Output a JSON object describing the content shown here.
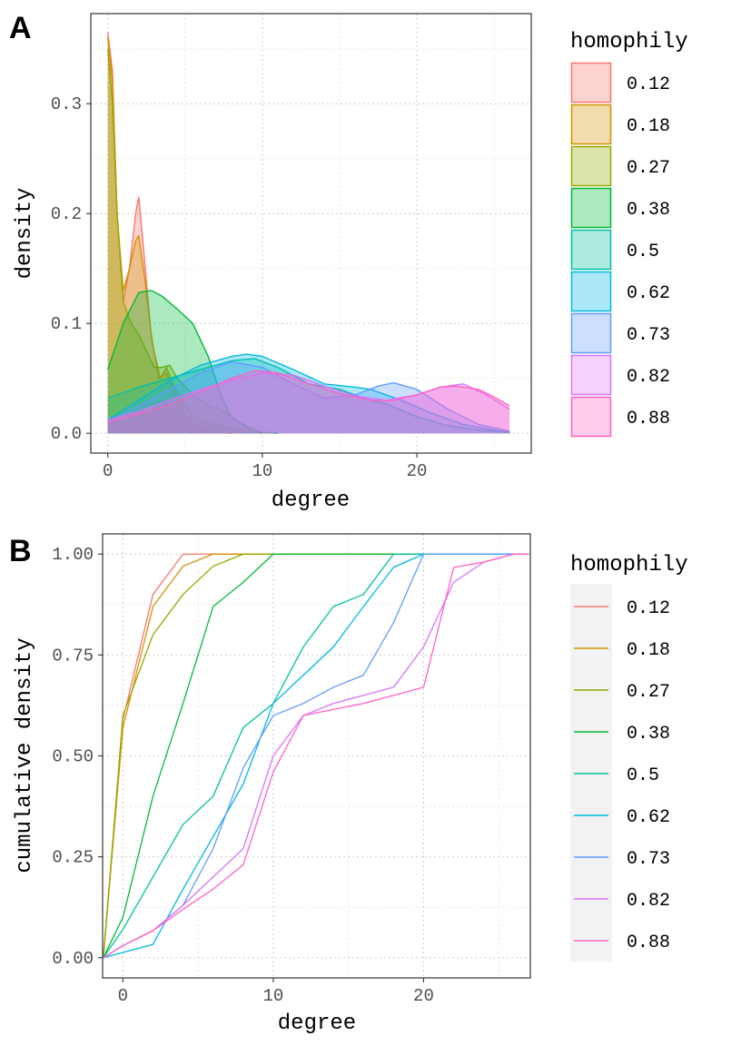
{
  "figure": {
    "panel_a_tag": "A",
    "panel_b_tag": "B",
    "legend_title": "homophily"
  },
  "colors": {
    "0.12": "#F8766D",
    "0.18": "#D39200",
    "0.27": "#93AA00",
    "0.38": "#00BA38",
    "0.5": "#00C19F",
    "0.62": "#00B9E3",
    "0.73": "#619CFF",
    "0.82": "#DB72FB",
    "0.88": "#FF61C3"
  },
  "chart_data": [
    {
      "type": "area",
      "panel": "A",
      "title": "",
      "xlabel": "degree",
      "ylabel": "density",
      "xlim": [
        -1.1,
        27.4
      ],
      "ylim": [
        -0.018,
        0.382
      ],
      "x_ticks": [
        0,
        10,
        20
      ],
      "y_ticks": [
        0.0,
        0.1,
        0.2,
        0.3
      ],
      "x_tick_labels": [
        "0",
        "10",
        "20"
      ],
      "y_tick_labels": [
        "0.0",
        "0.1",
        "0.2",
        "0.3"
      ],
      "grid": true,
      "legend": {
        "title": "homophily",
        "placement": "right"
      },
      "series": [
        {
          "name": "0.12",
          "x": [
            0,
            0.3,
            0.6,
            1.0,
            1.4,
            1.8,
            2.0,
            2.3,
            2.8,
            3.3,
            3.8,
            4.2,
            4.8,
            5.5,
            6.5,
            8
          ],
          "y": [
            0.365,
            0.33,
            0.2,
            0.12,
            0.15,
            0.2,
            0.215,
            0.17,
            0.09,
            0.05,
            0.055,
            0.04,
            0.02,
            0.008,
            0.002,
            0.0
          ]
        },
        {
          "name": "0.18",
          "x": [
            0,
            0.3,
            0.6,
            1.0,
            1.4,
            1.8,
            2.0,
            2.4,
            2.9,
            3.4,
            3.8,
            4.2,
            4.8,
            5.5,
            7,
            8.5,
            10
          ],
          "y": [
            0.36,
            0.32,
            0.2,
            0.13,
            0.15,
            0.175,
            0.18,
            0.14,
            0.08,
            0.05,
            0.06,
            0.045,
            0.03,
            0.015,
            0.008,
            0.003,
            0.0
          ]
        },
        {
          "name": "0.27",
          "x": [
            0,
            0.3,
            0.6,
            1.0,
            1.5,
            2.0,
            2.5,
            3.0,
            3.5,
            4.0,
            4.5,
            5.5,
            6.5,
            7.5,
            8.5,
            10
          ],
          "y": [
            0.35,
            0.3,
            0.2,
            0.12,
            0.1,
            0.09,
            0.075,
            0.06,
            0.06,
            0.062,
            0.05,
            0.035,
            0.025,
            0.02,
            0.01,
            0.0
          ]
        },
        {
          "name": "0.38",
          "x": [
            0,
            1,
            2,
            2.8,
            3.5,
            4.5,
            5.5,
            6.5,
            7.3,
            8.0,
            9,
            10,
            11
          ],
          "y": [
            0.058,
            0.1,
            0.128,
            0.13,
            0.125,
            0.113,
            0.1,
            0.07,
            0.035,
            0.015,
            0.005,
            0.001,
            0.0
          ]
        },
        {
          "name": "0.5",
          "x": [
            0,
            2,
            4,
            6,
            8,
            9.5,
            11,
            13,
            15,
            17,
            18,
            20,
            22,
            24,
            26
          ],
          "y": [
            0.032,
            0.042,
            0.05,
            0.058,
            0.066,
            0.068,
            0.06,
            0.045,
            0.04,
            0.03,
            0.027,
            0.015,
            0.007,
            0.003,
            0.001
          ]
        },
        {
          "name": "0.62",
          "x": [
            0,
            2,
            4,
            6,
            8,
            9,
            10,
            12,
            14,
            16,
            17,
            19,
            21,
            23,
            25,
            26
          ],
          "y": [
            0.012,
            0.03,
            0.048,
            0.062,
            0.07,
            0.072,
            0.07,
            0.058,
            0.045,
            0.042,
            0.04,
            0.03,
            0.018,
            0.008,
            0.003,
            0.001
          ]
        },
        {
          "name": "0.73",
          "x": [
            0,
            2,
            4,
            6,
            8,
            10,
            12,
            14,
            16,
            17.5,
            18.5,
            20,
            22,
            24,
            26
          ],
          "y": [
            0.01,
            0.025,
            0.04,
            0.055,
            0.065,
            0.06,
            0.045,
            0.032,
            0.035,
            0.043,
            0.046,
            0.04,
            0.022,
            0.008,
            0.002
          ]
        },
        {
          "name": "0.82",
          "x": [
            0,
            2,
            4,
            6,
            8,
            10,
            12,
            14,
            16,
            18,
            20,
            21.5,
            23,
            24.5,
            26
          ],
          "y": [
            0.012,
            0.02,
            0.03,
            0.04,
            0.048,
            0.055,
            0.053,
            0.043,
            0.034,
            0.03,
            0.035,
            0.042,
            0.045,
            0.035,
            0.022
          ]
        },
        {
          "name": "0.88",
          "x": [
            0,
            2,
            4,
            6,
            8,
            9.5,
            11,
            13,
            15,
            17,
            18.5,
            20,
            21.5,
            22.5,
            24,
            25,
            26
          ],
          "y": [
            0.01,
            0.018,
            0.026,
            0.038,
            0.05,
            0.057,
            0.055,
            0.045,
            0.036,
            0.03,
            0.03,
            0.035,
            0.042,
            0.043,
            0.04,
            0.033,
            0.025
          ]
        }
      ]
    },
    {
      "type": "line",
      "panel": "B",
      "title": "",
      "xlabel": "degree",
      "ylabel": "cumulative density",
      "xlim": [
        -1.35,
        27.1
      ],
      "ylim": [
        -0.05,
        1.05
      ],
      "x_ticks": [
        0,
        10,
        20
      ],
      "y_ticks": [
        0.0,
        0.25,
        0.5,
        0.75,
        1.0
      ],
      "x_tick_labels": [
        "0",
        "10",
        "20"
      ],
      "y_tick_labels": [
        "0.00",
        "0.25",
        "0.50",
        "0.75",
        "1.00"
      ],
      "grid": true,
      "legend": {
        "title": "homophily",
        "placement": "right"
      },
      "series": [
        {
          "name": "0.12",
          "x": [
            -1.3,
            0,
            2,
            4,
            27
          ],
          "y": [
            0,
            0.59,
            0.9,
            1.0,
            1.0
          ]
        },
        {
          "name": "0.18",
          "x": [
            -1.3,
            0,
            2,
            4,
            6,
            27
          ],
          "y": [
            0,
            0.57,
            0.87,
            0.97,
            1.0,
            1.0
          ]
        },
        {
          "name": "0.27",
          "x": [
            -1.3,
            0,
            2,
            4,
            6,
            8,
            27
          ],
          "y": [
            0,
            0.6,
            0.8,
            0.9,
            0.97,
            1.0,
            1.0
          ]
        },
        {
          "name": "0.38",
          "x": [
            -1.3,
            0,
            2,
            4,
            6,
            8,
            10,
            27
          ],
          "y": [
            0,
            0.1,
            0.4,
            0.63,
            0.87,
            0.93,
            1.0,
            1.0
          ]
        },
        {
          "name": "0.5",
          "x": [
            -1.3,
            0,
            2,
            4,
            6,
            8,
            10,
            12,
            14,
            16,
            18,
            27
          ],
          "y": [
            0,
            0.07,
            0.2,
            0.33,
            0.4,
            0.57,
            0.63,
            0.77,
            0.87,
            0.9,
            1.0,
            1.0
          ]
        },
        {
          "name": "0.62",
          "x": [
            -1.3,
            2,
            4,
            6,
            8,
            10,
            12,
            14,
            16,
            18,
            20,
            27
          ],
          "y": [
            0,
            0.033,
            0.17,
            0.3,
            0.43,
            0.63,
            0.7,
            0.77,
            0.87,
            0.967,
            1.0,
            1.0
          ]
        },
        {
          "name": "0.73",
          "x": [
            -1.3,
            0,
            2,
            4,
            6,
            8,
            10,
            12,
            14,
            16,
            18,
            20,
            24,
            27
          ],
          "y": [
            0,
            0.03,
            0.067,
            0.13,
            0.27,
            0.47,
            0.6,
            0.63,
            0.67,
            0.7,
            0.83,
            1.0,
            1.0,
            1.0
          ]
        },
        {
          "name": "0.82",
          "x": [
            -1.3,
            0,
            2,
            4,
            6,
            8,
            10,
            12,
            14,
            16,
            18,
            20,
            22,
            24,
            26,
            27
          ],
          "y": [
            0,
            0.03,
            0.067,
            0.13,
            0.2,
            0.27,
            0.5,
            0.6,
            0.63,
            0.65,
            0.67,
            0.77,
            0.93,
            0.98,
            1.0,
            1.0
          ]
        },
        {
          "name": "0.88",
          "x": [
            -1.3,
            0,
            2,
            4,
            6,
            8,
            10,
            12,
            16,
            20,
            22,
            24,
            26,
            27
          ],
          "y": [
            0,
            0.03,
            0.067,
            0.12,
            0.17,
            0.23,
            0.46,
            0.6,
            0.63,
            0.67,
            0.967,
            0.98,
            1.0,
            1.0
          ]
        }
      ]
    }
  ]
}
